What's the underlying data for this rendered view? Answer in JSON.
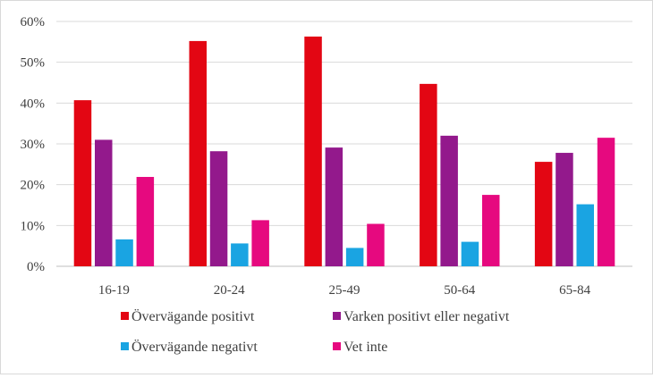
{
  "chart_data": {
    "type": "bar",
    "categories": [
      "16-19",
      "20-24",
      "25-49",
      "50-64",
      "65-84"
    ],
    "series": [
      {
        "name": "Övervägande positivt",
        "color": "#e30613",
        "values": [
          40.7,
          55.2,
          56.3,
          44.7,
          25.6
        ]
      },
      {
        "name": "Varken positivt eller negativt",
        "color": "#93198c",
        "values": [
          31.0,
          28.2,
          29.1,
          32.0,
          27.8
        ]
      },
      {
        "name": "Övervägande negativt",
        "color": "#1aa4e2",
        "values": [
          6.6,
          5.6,
          4.5,
          6.0,
          15.2
        ]
      },
      {
        "name": "Vet inte",
        "color": "#e6097f",
        "values": [
          21.9,
          11.3,
          10.4,
          17.5,
          31.5
        ]
      }
    ],
    "ylim": [
      0,
      60
    ],
    "yticks": [
      "0%",
      "10%",
      "20%",
      "30%",
      "40%",
      "50%",
      "60%"
    ],
    "ytick_values": [
      0,
      10,
      20,
      30,
      40,
      50,
      60
    ],
    "grid": true,
    "legend_position": "bottom"
  }
}
